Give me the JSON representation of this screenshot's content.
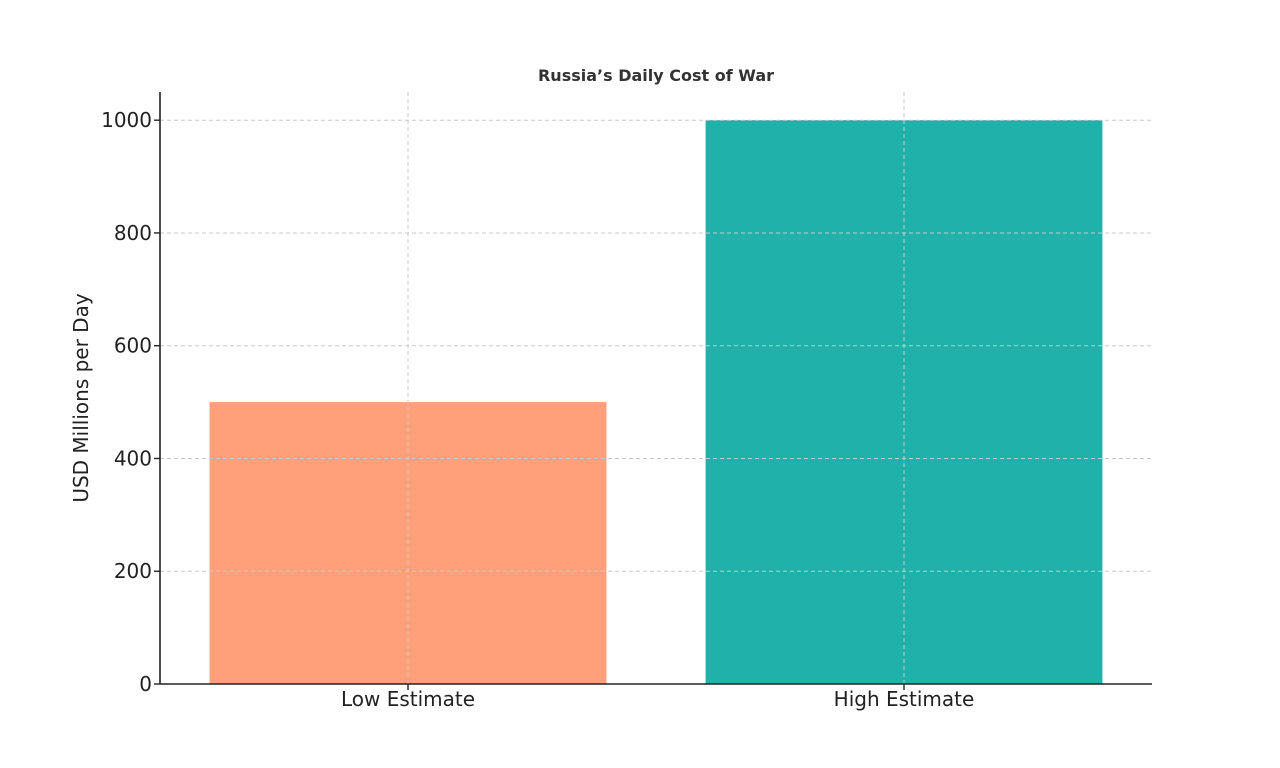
{
  "chart_data": {
    "type": "bar",
    "title": "Russia’s Daily Cost of War",
    "xlabel": "",
    "ylabel": "USD Millions per Day",
    "categories": [
      "Low Estimate",
      "High Estimate"
    ],
    "values": [
      500,
      1000
    ],
    "colors": [
      "#FFA07A",
      "#20B2AA"
    ],
    "ylim": [
      0,
      1050
    ],
    "yticks": [
      0,
      200,
      400,
      600,
      800,
      1000
    ],
    "grid": true,
    "legend": "none"
  }
}
